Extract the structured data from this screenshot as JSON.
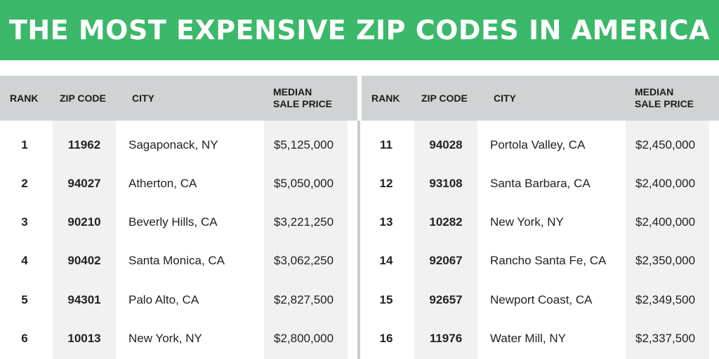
{
  "title": "THE MOST EXPENSIVE ZIP CODES IN AMERICA",
  "colors": {
    "banner": "#3cb86a",
    "header": "#d0d3d3",
    "stripe": "#f1f1f1"
  },
  "headers": {
    "rank": "RANK",
    "zip": "ZIP CODE",
    "city": "CITY",
    "price_line1": "MEDIAN",
    "price_line2": "SALE PRICE"
  },
  "chart_data": {
    "type": "table",
    "title": "THE MOST EXPENSIVE ZIP CODES IN AMERICA",
    "columns": [
      "RANK",
      "ZIP CODE",
      "CITY",
      "MEDIAN SALE PRICE"
    ],
    "left_rows": [
      [
        "1",
        "11962",
        "Sagaponack, NY",
        "$5,125,000"
      ],
      [
        "2",
        "94027",
        "Atherton, CA",
        "$5,050,000"
      ],
      [
        "3",
        "90210",
        "Beverly Hills, CA",
        "$3,221,250"
      ],
      [
        "4",
        "90402",
        "Santa Monica, CA",
        "$3,062,250"
      ],
      [
        "5",
        "94301",
        "Palo Alto, CA",
        "$2,827,500"
      ],
      [
        "6",
        "10013",
        "New York, NY",
        "$2,800,000"
      ]
    ],
    "right_rows": [
      [
        "11",
        "94028",
        "Portola Valley, CA",
        "$2,450,000"
      ],
      [
        "12",
        "93108",
        "Santa Barbara, CA",
        "$2,400,000"
      ],
      [
        "13",
        "10282",
        "New York, NY",
        "$2,400,000"
      ],
      [
        "14",
        "92067",
        "Rancho Santa Fe, CA",
        "$2,350,000"
      ],
      [
        "15",
        "92657",
        "Newport Coast, CA",
        "$2,349,500"
      ],
      [
        "16",
        "11976",
        "Water Mill, NY",
        "$2,337,500"
      ]
    ]
  }
}
